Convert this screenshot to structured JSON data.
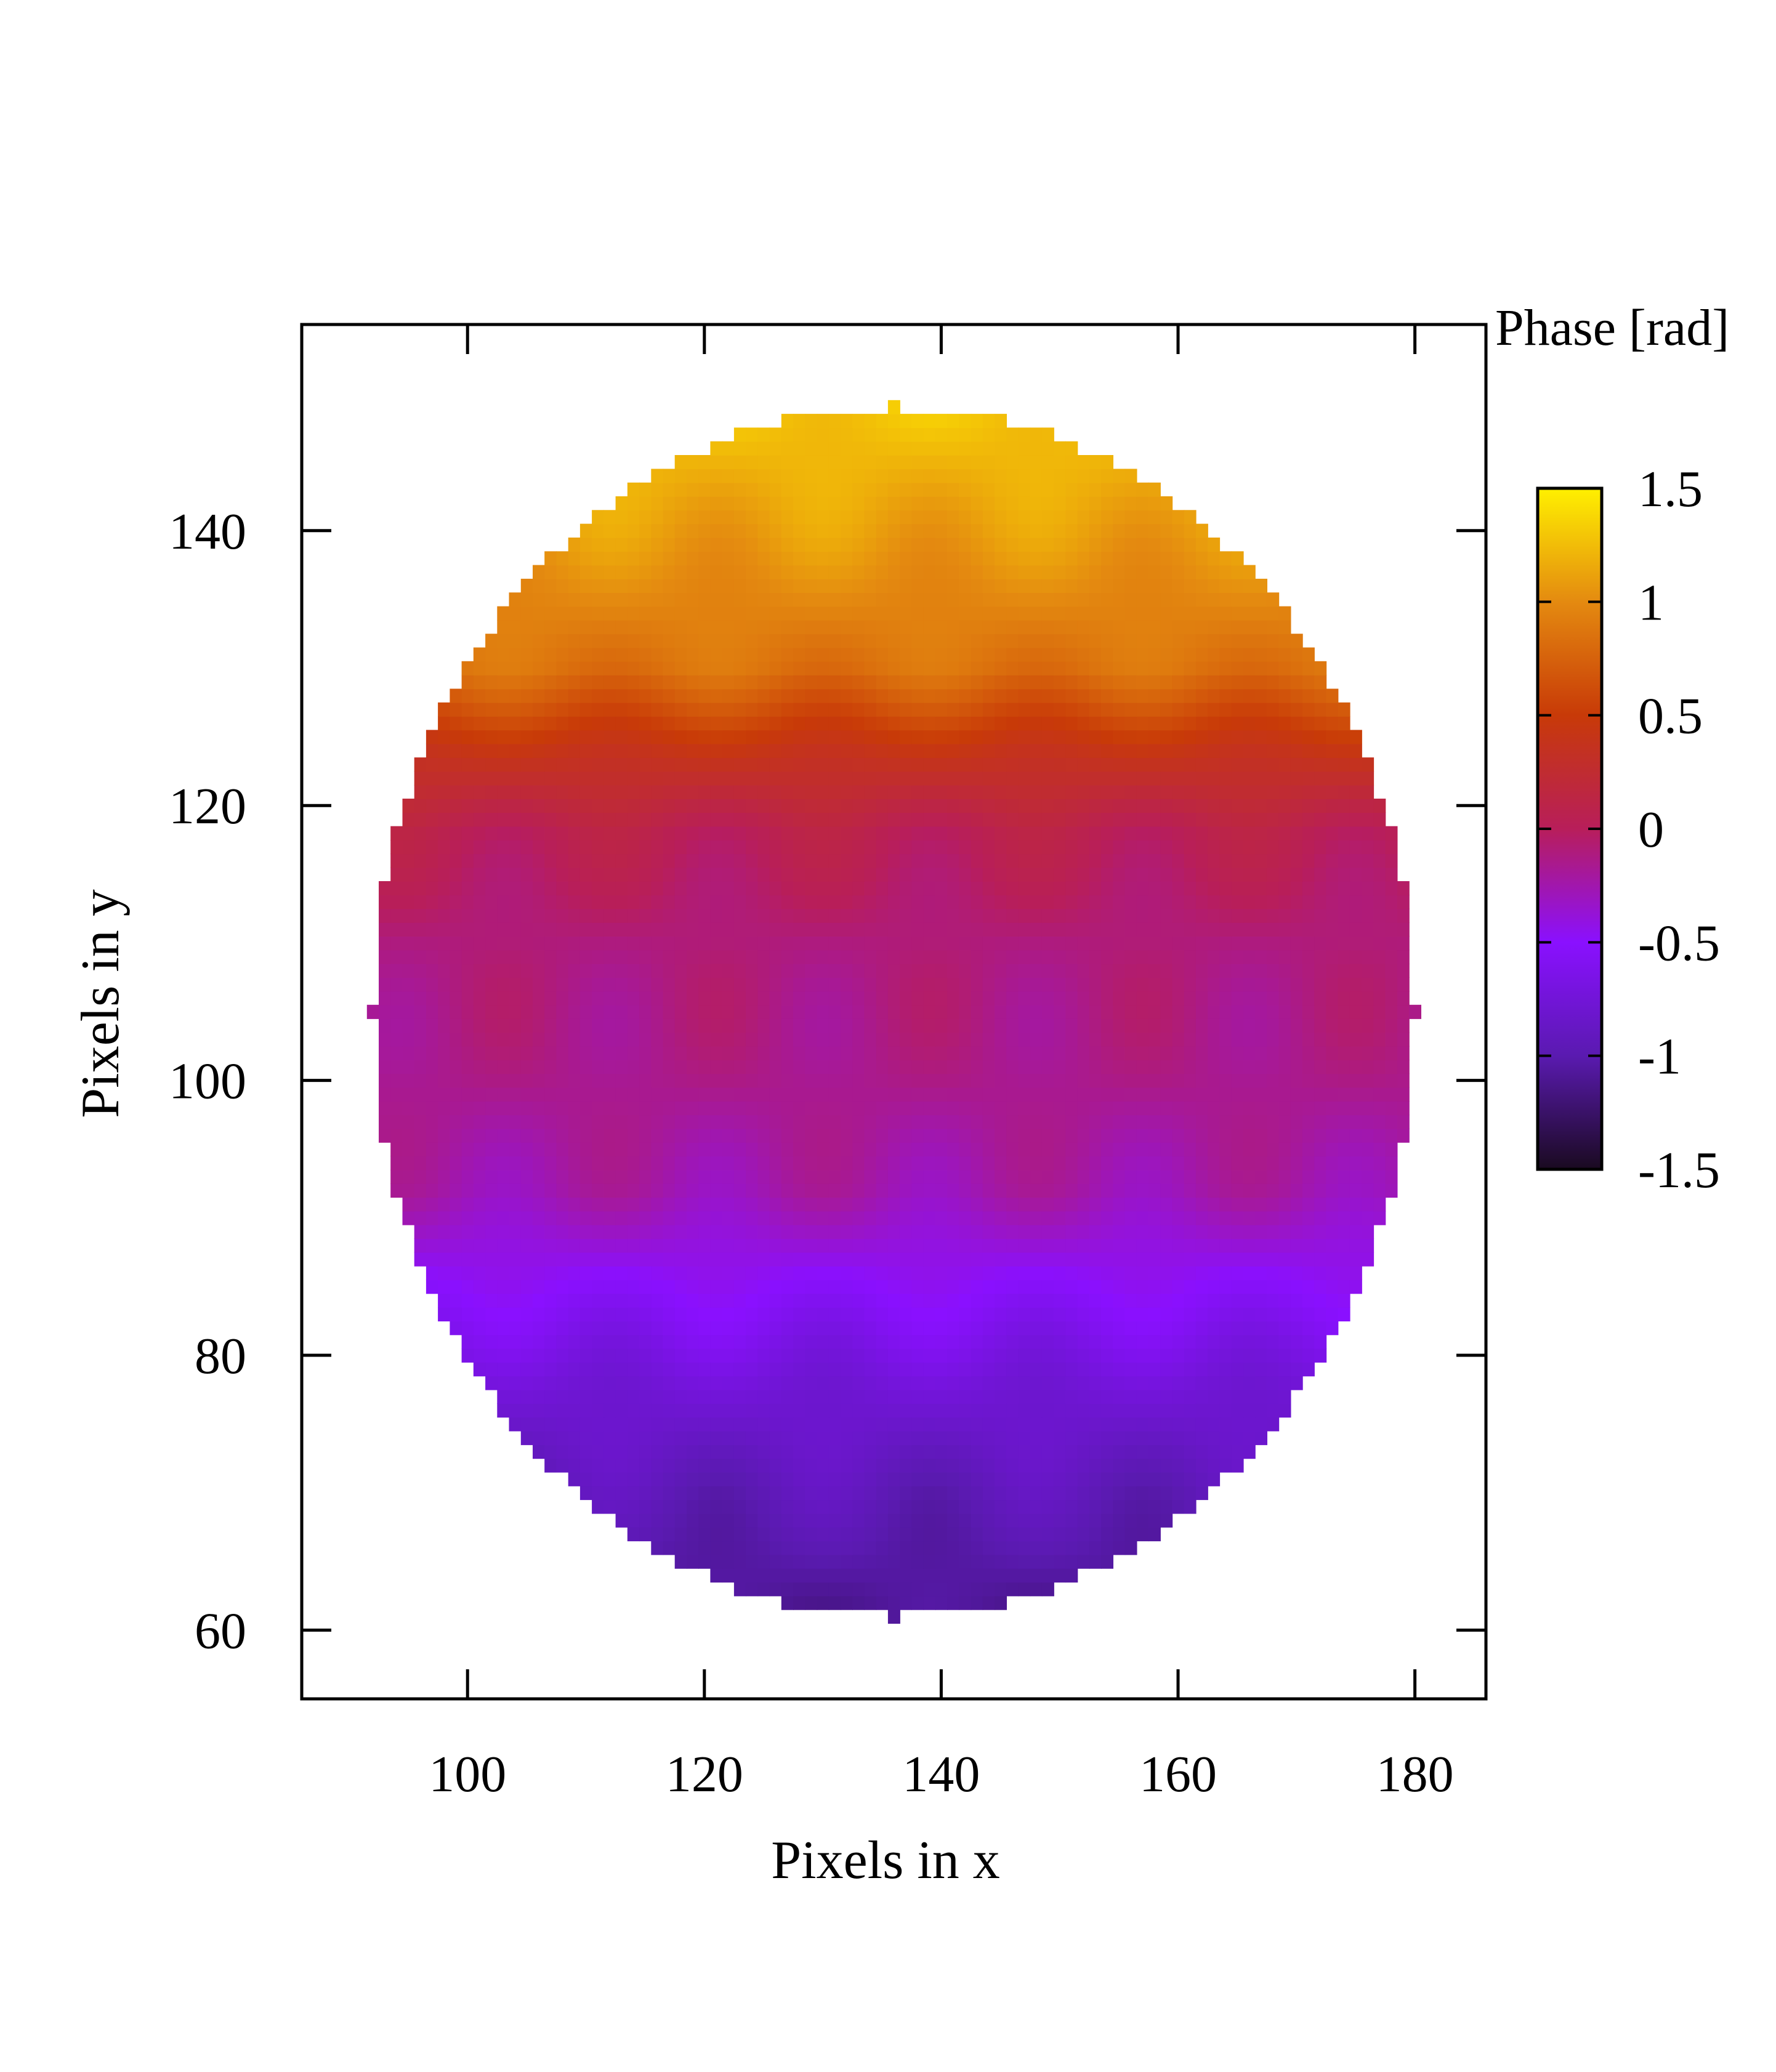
{
  "chart_data": {
    "type": "heatmap",
    "description_note": "",
    "xlabel": "Pixels in x",
    "ylabel": "Pixels in y",
    "xlim": [
      86,
      186
    ],
    "ylim": [
      55,
      155
    ],
    "x_ticks": [
      100,
      120,
      140,
      160,
      180
    ],
    "y_ticks": [
      60,
      80,
      100,
      120,
      140
    ],
    "colorbar": {
      "label": "Phase [rad]",
      "range": [
        -1.5,
        1.5
      ],
      "ticks": [
        -1.5,
        -1,
        -0.5,
        0,
        0.5,
        1,
        1.5
      ],
      "tick_labels": [
        "-1.5",
        "-1",
        "-0.5",
        "0",
        "0.5",
        "1",
        "1.5"
      ],
      "colors": [
        {
          "value": -1.5,
          "color": "#1a0a20"
        },
        {
          "value": -1.0,
          "color": "#5a1ab0"
        },
        {
          "value": -0.5,
          "color": "#8a10ff"
        },
        {
          "value": 0.0,
          "color": "#b81e5a"
        },
        {
          "value": 0.5,
          "color": "#c83a08"
        },
        {
          "value": 1.0,
          "color": "#e48a10"
        },
        {
          "value": 1.5,
          "color": "#fff000"
        }
      ]
    },
    "aperture": {
      "center_x": 136,
      "center_y": 105,
      "radius_x": 44,
      "radius_y": 44
    },
    "grid": false,
    "phase_profile_by_y": [
      {
        "y": 149,
        "phase": 1.3
      },
      {
        "y": 140,
        "phase": 1.1
      },
      {
        "y": 130,
        "phase": 0.85
      },
      {
        "y": 124,
        "phase": 0.4
      },
      {
        "y": 118,
        "phase": 0.05
      },
      {
        "y": 110,
        "phase": -0.1
      },
      {
        "y": 100,
        "phase": -0.15
      },
      {
        "y": 92,
        "phase": -0.25
      },
      {
        "y": 85,
        "phase": -0.5
      },
      {
        "y": 78,
        "phase": -0.75
      },
      {
        "y": 70,
        "phase": -0.95
      },
      {
        "y": 61,
        "phase": -1.1
      }
    ]
  }
}
